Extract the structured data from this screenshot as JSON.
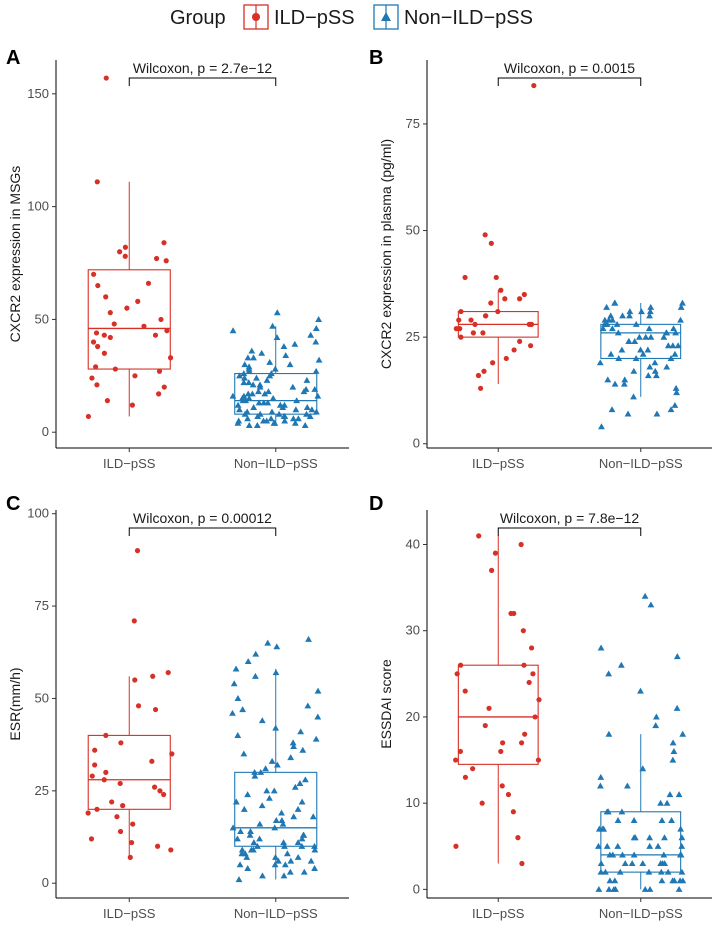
{
  "legend": {
    "title": "Group",
    "items": [
      {
        "label": "ILD−pSS",
        "color": "#d73027",
        "shape": "circle"
      },
      {
        "label": "Non−ILD−pSS",
        "color": "#1f78b4",
        "shape": "triangle"
      }
    ]
  },
  "chart_data": [
    {
      "panel": "A",
      "type": "boxplot",
      "ylabel": "CXCR2 expression in MSGs",
      "xlabel": "",
      "categories": [
        "ILD−pSS",
        "Non−ILD−pSS"
      ],
      "ylim": [
        -7,
        165
      ],
      "yticks": [
        0,
        50,
        100,
        150
      ],
      "test_label": "Wilcoxon, p = 2.7e−12",
      "boxes": [
        {
          "group": "ILD−pSS",
          "whisker_low": 7,
          "q1": 28,
          "median": 46,
          "q3": 72,
          "whisker_high": 111
        },
        {
          "group": "Non−ILD−pSS",
          "whisker_low": 4,
          "q1": 8,
          "median": 14,
          "q3": 26,
          "whisker_high": 47
        }
      ],
      "points": [
        [
          157,
          111,
          84,
          82,
          80,
          78,
          77,
          76,
          70,
          66,
          65,
          60,
          58,
          55,
          53,
          50,
          48,
          47,
          45,
          44,
          43,
          43,
          42,
          40,
          38,
          35,
          33,
          29,
          28,
          27,
          25,
          24,
          21,
          20,
          17,
          14,
          12,
          7
        ],
        [
          53,
          50,
          47,
          46,
          45,
          43,
          42,
          40,
          39,
          38,
          36,
          35,
          34,
          33,
          33,
          32,
          31,
          30,
          30,
          29,
          28,
          28,
          27,
          27,
          26,
          26,
          25,
          25,
          24,
          24,
          23,
          23,
          22,
          22,
          21,
          21,
          20,
          20,
          19,
          19,
          18,
          18,
          18,
          17,
          17,
          17,
          16,
          16,
          16,
          15,
          15,
          15,
          14,
          14,
          14,
          13,
          13,
          13,
          12,
          12,
          12,
          11,
          11,
          11,
          10,
          10,
          10,
          9,
          9,
          9,
          8,
          8,
          8,
          8,
          7,
          7,
          7,
          7,
          6,
          6,
          6,
          6,
          5,
          5,
          5,
          5,
          4,
          4,
          4,
          4,
          3,
          3,
          3
        ]
      ]
    },
    {
      "panel": "B",
      "type": "boxplot",
      "ylabel": "CXCR2 expression in plasma (pg/ml)",
      "xlabel": "",
      "categories": [
        "ILD−pSS",
        "Non−ILD−pSS"
      ],
      "ylim": [
        -1,
        90
      ],
      "yticks": [
        0,
        25,
        50,
        75
      ],
      "test_label": "Wilcoxon, p = 0.0015",
      "boxes": [
        {
          "group": "ILD−pSS",
          "whisker_low": 14,
          "q1": 25,
          "median": 28,
          "q3": 31,
          "whisker_high": 36
        },
        {
          "group": "Non−ILD−pSS",
          "whisker_low": 11,
          "q1": 20,
          "median": 26,
          "q3": 28,
          "whisker_high": 33
        }
      ],
      "points": [
        [
          84,
          49,
          47,
          39,
          39,
          36,
          35,
          34,
          34,
          33,
          31,
          31,
          30,
          30,
          29,
          29,
          28,
          28,
          28,
          27,
          27,
          26,
          26,
          25,
          24,
          23,
          22,
          20,
          19,
          17,
          16,
          13
        ],
        [
          33,
          33,
          33,
          32,
          32,
          32,
          31,
          31,
          31,
          30,
          30,
          30,
          30,
          29,
          29,
          29,
          29,
          28,
          28,
          28,
          28,
          27,
          27,
          27,
          27,
          26,
          26,
          26,
          26,
          25,
          25,
          25,
          25,
          24,
          24,
          24,
          23,
          23,
          23,
          22,
          22,
          22,
          21,
          21,
          21,
          20,
          20,
          20,
          19,
          19,
          18,
          18,
          17,
          17,
          16,
          16,
          15,
          15,
          14,
          14,
          13,
          12,
          11,
          9,
          8,
          8,
          7,
          7,
          4
        ]
      ]
    },
    {
      "panel": "C",
      "type": "boxplot",
      "ylabel": "ESR(mm/h)",
      "xlabel": "",
      "categories": [
        "ILD−pSS",
        "Non−ILD−pSS"
      ],
      "ylim": [
        -4,
        101
      ],
      "yticks": [
        0,
        25,
        50,
        75,
        100
      ],
      "test_label": "Wilcoxon, p = 0.00012",
      "boxes": [
        {
          "group": "ILD−pSS",
          "whisker_low": 7,
          "q1": 20,
          "median": 28,
          "q3": 40,
          "whisker_high": 56
        },
        {
          "group": "Non−ILD−pSS",
          "whisker_low": 1,
          "q1": 10,
          "median": 15,
          "q3": 30,
          "whisker_high": 58
        }
      ],
      "points": [
        [
          90,
          71,
          57,
          56,
          55,
          48,
          47,
          40,
          38,
          36,
          35,
          33,
          32,
          30,
          29,
          28,
          27,
          26,
          25,
          24,
          22,
          21,
          20,
          19,
          18,
          16,
          14,
          12,
          11,
          10,
          9,
          7
        ],
        [
          66,
          65,
          64,
          62,
          60,
          58,
          57,
          56,
          54,
          52,
          50,
          48,
          47,
          46,
          45,
          44,
          42,
          41,
          40,
          39,
          38,
          37,
          36,
          35,
          34,
          33,
          32,
          31,
          30,
          30,
          29,
          28,
          27,
          26,
          25,
          25,
          24,
          23,
          22,
          22,
          21,
          20,
          20,
          19,
          18,
          18,
          17,
          17,
          16,
          16,
          15,
          15,
          14,
          14,
          13,
          13,
          13,
          12,
          12,
          12,
          11,
          11,
          11,
          10,
          10,
          10,
          10,
          9,
          9,
          9,
          9,
          8,
          8,
          8,
          7,
          7,
          7,
          6,
          6,
          6,
          5,
          5,
          5,
          4,
          4,
          3,
          3,
          2,
          2,
          1
        ]
      ]
    },
    {
      "panel": "D",
      "type": "boxplot",
      "ylabel": "ESSDAI score",
      "xlabel": "",
      "categories": [
        "ILD−pSS",
        "Non−ILD−pSS"
      ],
      "ylim": [
        -1,
        44
      ],
      "yticks": [
        0,
        10,
        20,
        30,
        40
      ],
      "test_label": "Wilcoxon, p = 7.8e−12",
      "boxes": [
        {
          "group": "ILD−pSS",
          "whisker_low": 3,
          "q1": 14.5,
          "median": 20,
          "q3": 26,
          "whisker_high": 41
        },
        {
          "group": "Non−ILD−pSS",
          "whisker_low": 0,
          "q1": 2,
          "median": 4,
          "q3": 9,
          "whisker_high": 18
        }
      ],
      "points": [
        [
          41,
          40,
          39,
          37,
          32,
          32,
          30,
          28,
          26,
          26,
          25,
          25,
          24,
          23,
          22,
          21,
          20,
          19,
          18,
          17,
          17,
          16,
          16,
          15,
          15,
          14,
          13,
          12,
          11,
          10,
          9,
          6,
          5,
          3
        ],
        [
          34,
          33,
          28,
          27,
          26,
          25,
          23,
          21,
          20,
          19,
          18,
          18,
          17,
          16,
          15,
          14,
          13,
          12,
          12,
          11,
          11,
          10,
          10,
          9,
          9,
          9,
          8,
          8,
          8,
          8,
          7,
          7,
          7,
          7,
          6,
          6,
          6,
          6,
          6,
          5,
          5,
          5,
          5,
          5,
          5,
          4,
          4,
          4,
          4,
          4,
          4,
          4,
          3,
          3,
          3,
          3,
          3,
          3,
          3,
          2,
          2,
          2,
          2,
          2,
          2,
          2,
          1,
          1,
          1,
          1,
          1,
          1,
          1,
          0,
          0,
          0,
          0,
          0,
          0,
          0
        ]
      ]
    }
  ]
}
